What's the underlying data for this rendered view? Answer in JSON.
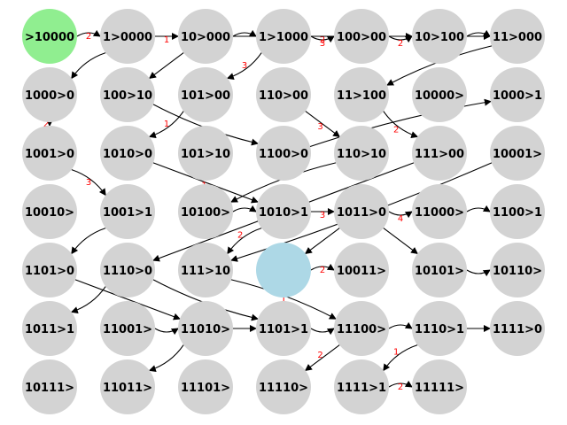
{
  "colors": {
    "node": "#d3d3d3",
    "start": "#90ee90",
    "current": "#add8e6",
    "edge": "#000000",
    "edge_label": "#ff0000"
  },
  "nodes": [
    {
      "id": "n00",
      "label": ">10000",
      "kind": "start"
    },
    {
      "id": "n01",
      "label": "1>0000"
    },
    {
      "id": "n02",
      "label": "10>000"
    },
    {
      "id": "n03",
      "label": "1>1000"
    },
    {
      "id": "n04",
      "label": "100>00"
    },
    {
      "id": "n05",
      "label": "10>100"
    },
    {
      "id": "n06",
      "label": "11>000"
    },
    {
      "id": "n10",
      "label": "1000>0"
    },
    {
      "id": "n11",
      "label": "100>10"
    },
    {
      "id": "n12",
      "label": "101>00"
    },
    {
      "id": "n13",
      "label": "110>00"
    },
    {
      "id": "n14",
      "label": "11>100"
    },
    {
      "id": "n15",
      "label": "10000>"
    },
    {
      "id": "n16",
      "label": "1000>1"
    },
    {
      "id": "n20",
      "label": "1001>0"
    },
    {
      "id": "n21",
      "label": "1010>0"
    },
    {
      "id": "n22",
      "label": "101>10"
    },
    {
      "id": "n23",
      "label": "1100>0"
    },
    {
      "id": "n24",
      "label": "110>10"
    },
    {
      "id": "n25",
      "label": "111>00"
    },
    {
      "id": "n26",
      "label": "10001>"
    },
    {
      "id": "n30",
      "label": "10010>"
    },
    {
      "id": "n31",
      "label": "1001>1"
    },
    {
      "id": "n32",
      "label": "10100>"
    },
    {
      "id": "n33",
      "label": "1010>1"
    },
    {
      "id": "n34",
      "label": "1011>0"
    },
    {
      "id": "n35",
      "label": "11000>"
    },
    {
      "id": "n36",
      "label": "1100>1"
    },
    {
      "id": "n40",
      "label": "1101>0"
    },
    {
      "id": "n41",
      "label": "1110>0"
    },
    {
      "id": "n42",
      "label": "111>10"
    },
    {
      "id": "n43",
      "label": "",
      "kind": "current"
    },
    {
      "id": "n44",
      "label": "10011>"
    },
    {
      "id": "n45",
      "label": "10101>"
    },
    {
      "id": "n46",
      "label": "10110>"
    },
    {
      "id": "n50",
      "label": "1011>1"
    },
    {
      "id": "n51",
      "label": "11001>"
    },
    {
      "id": "n52",
      "label": "11010>"
    },
    {
      "id": "n53",
      "label": "1101>1"
    },
    {
      "id": "n54",
      "label": "11100>"
    },
    {
      "id": "n55",
      "label": "1110>1"
    },
    {
      "id": "n56",
      "label": "1111>0"
    },
    {
      "id": "n60",
      "label": "10111>"
    },
    {
      "id": "n61",
      "label": "11011>"
    },
    {
      "id": "n62",
      "label": "11101>"
    },
    {
      "id": "n63",
      "label": "11110>"
    },
    {
      "id": "n64",
      "label": "1111>1"
    },
    {
      "id": "n65",
      "label": "11111>"
    }
  ],
  "edges": [
    {
      "from": "n00",
      "to": "n01",
      "label": "2"
    },
    {
      "from": "n01",
      "to": "n02",
      "label": "1"
    },
    {
      "from": "n01",
      "to": "n10",
      "label": ""
    },
    {
      "from": "n02",
      "to": "n03",
      "label": ""
    },
    {
      "from": "n02",
      "to": "n11",
      "label": ""
    },
    {
      "from": "n03",
      "to": "n04",
      "label": "3"
    },
    {
      "from": "n03",
      "to": "n12",
      "label": "3"
    },
    {
      "from": "n02",
      "to": "n05",
      "label": "2"
    },
    {
      "from": "n04",
      "to": "n05",
      "label": "2"
    },
    {
      "from": "n05",
      "to": "n06",
      "label": ""
    },
    {
      "from": "n03",
      "to": "n06",
      "label": ""
    },
    {
      "from": "n06",
      "to": "n14",
      "label": "1"
    },
    {
      "from": "n12",
      "to": "n21",
      "label": "1"
    },
    {
      "from": "n10",
      "to": "n20",
      "label": "2"
    },
    {
      "from": "n11",
      "to": "n23",
      "label": "1"
    },
    {
      "from": "n23",
      "to": "n16",
      "label": ""
    },
    {
      "from": "n13",
      "to": "n24",
      "label": "3"
    },
    {
      "from": "n14",
      "to": "n25",
      "label": "2"
    },
    {
      "from": "n20",
      "to": "n31",
      "label": "3"
    },
    {
      "from": "n21",
      "to": "n33",
      "label": "1"
    },
    {
      "from": "n31",
      "to": "n40",
      "label": ""
    },
    {
      "from": "n32",
      "to": "n33",
      "label": ""
    },
    {
      "from": "n33",
      "to": "n34",
      "label": "3"
    },
    {
      "from": "n34",
      "to": "n35",
      "label": "4"
    },
    {
      "from": "n35",
      "to": "n36",
      "label": ""
    },
    {
      "from": "n25",
      "to": "n41",
      "label": ""
    },
    {
      "from": "n24",
      "to": "n32",
      "label": ""
    },
    {
      "from": "n26",
      "to": "n42",
      "label": ""
    },
    {
      "from": "n34",
      "to": "n43",
      "label": ""
    },
    {
      "from": "n33",
      "to": "n42",
      "label": "2"
    },
    {
      "from": "n43",
      "to": "n44",
      "label": "2"
    },
    {
      "from": "n34",
      "to": "n45",
      "label": ""
    },
    {
      "from": "n45",
      "to": "n46",
      "label": ""
    },
    {
      "from": "n41",
      "to": "n50",
      "label": ""
    },
    {
      "from": "n40",
      "to": "n52",
      "label": ""
    },
    {
      "from": "n41",
      "to": "n53",
      "label": "3"
    },
    {
      "from": "n42",
      "to": "n54",
      "label": "1"
    },
    {
      "from": "n52",
      "to": "n53",
      "label": ""
    },
    {
      "from": "n53",
      "to": "n54",
      "label": ""
    },
    {
      "from": "n54",
      "to": "n55",
      "label": ""
    },
    {
      "from": "n55",
      "to": "n56",
      "label": ""
    },
    {
      "from": "n51",
      "to": "n52",
      "label": ""
    },
    {
      "from": "n52",
      "to": "n61",
      "label": ""
    },
    {
      "from": "n54",
      "to": "n63",
      "label": "2"
    },
    {
      "from": "n55",
      "to": "n64",
      "label": "1"
    },
    {
      "from": "n64",
      "to": "n65",
      "label": "2"
    }
  ]
}
